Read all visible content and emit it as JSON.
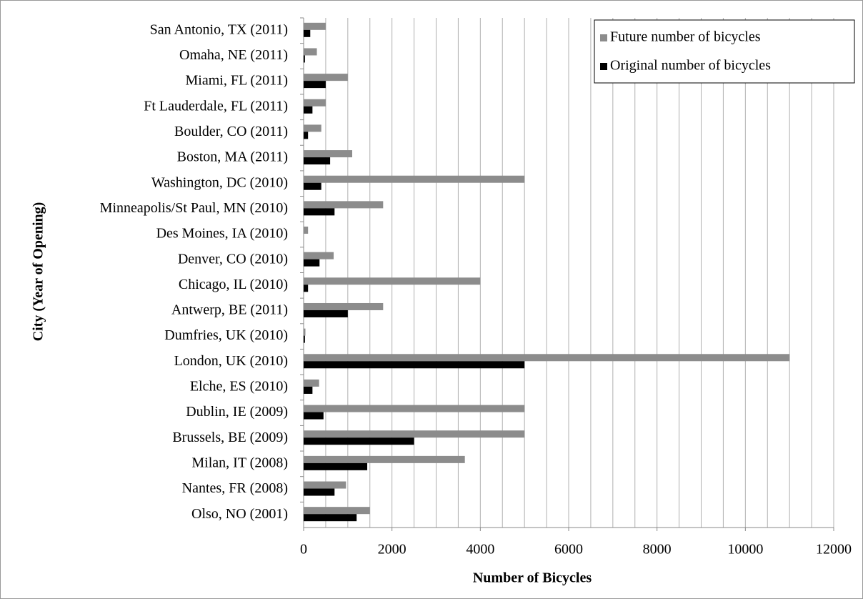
{
  "chart_data": {
    "type": "hbar",
    "xlabel": "Number of Bicycles",
    "ylabel": "City (Year of Opening)",
    "categories": [
      "San Antonio, TX (2011)",
      "Omaha, NE (2011)",
      "Miami, FL (2011)",
      "Ft Lauderdale, FL (2011)",
      "Boulder, CO (2011)",
      "Boston, MA (2011)",
      "Washington, DC (2010)",
      "Minneapolis/St Paul, MN (2010)",
      "Des Moines, IA (2010)",
      "Denver, CO (2010)",
      "Chicago, IL (2010)",
      "Antwerp, BE (2011)",
      "Dumfries, UK (2010)",
      "London, UK (2010)",
      "Elche, ES (2010)",
      "Dublin, IE (2009)",
      "Brussels, BE (2009)",
      "Milan, IT (2008)",
      "Nantes, FR (2008)",
      "Olso, NO (2001)"
    ],
    "series": [
      {
        "name": "Future number of bicycles",
        "color": "#8c8c8c",
        "values": [
          500,
          300,
          1000,
          500,
          400,
          1100,
          5000,
          1800,
          100,
          680,
          4000,
          1800,
          40,
          11000,
          350,
          5000,
          5000,
          3650,
          960,
          1500
        ]
      },
      {
        "name": "Original number of bicycles",
        "color": "#000000",
        "values": [
          150,
          30,
          500,
          200,
          100,
          600,
          400,
          700,
          0,
          360,
          100,
          1000,
          30,
          5000,
          200,
          450,
          2500,
          1440,
          700,
          1200
        ]
      }
    ],
    "xlim": [
      0,
      12000
    ],
    "xticks": [
      0,
      2000,
      4000,
      6000,
      8000,
      10000,
      12000
    ],
    "xgrid": [
      500,
      1000,
      1500,
      2000,
      2500,
      3000,
      3500,
      4000,
      4500,
      5000,
      5500,
      6000,
      6500,
      7000,
      7500,
      8000,
      8500,
      9000,
      9500,
      10000,
      10500,
      11000,
      11500,
      12000
    ],
    "grid": true,
    "legend": "upper right"
  }
}
